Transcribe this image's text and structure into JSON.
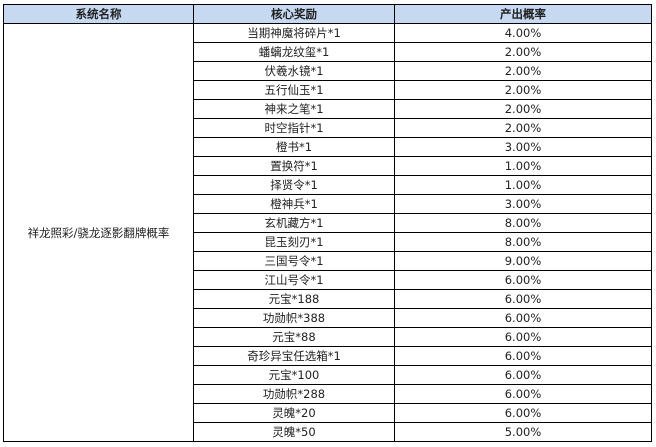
{
  "headers": [
    "系统名称",
    "核心奖励",
    "产出概率"
  ],
  "system_name": "祥龙照彩/骁龙逐影翻牌概率",
  "rows": [
    {
      "reward": "当期神魔将碎片*1",
      "rate": "4.00%"
    },
    {
      "reward": "蟠螭龙纹玺*1",
      "rate": "2.00%"
    },
    {
      "reward": "伏羲水镜*1",
      "rate": "2.00%"
    },
    {
      "reward": "五行仙玉*1",
      "rate": "2.00%"
    },
    {
      "reward": "神来之笔*1",
      "rate": "2.00%"
    },
    {
      "reward": "时空指针*1",
      "rate": "2.00%"
    },
    {
      "reward": "橙书*1",
      "rate": "3.00%"
    },
    {
      "reward": "置换符*1",
      "rate": "1.00%"
    },
    {
      "reward": "择贤令*1",
      "rate": "1.00%"
    },
    {
      "reward": "橙神兵*1",
      "rate": "3.00%"
    },
    {
      "reward": "玄机藏方*1",
      "rate": "8.00%"
    },
    {
      "reward": "昆玉刻刃*1",
      "rate": "8.00%"
    },
    {
      "reward": "三国号令*1",
      "rate": "9.00%"
    },
    {
      "reward": "江山号令*1",
      "rate": "6.00%"
    },
    {
      "reward": "元宝*188",
      "rate": "6.00%"
    },
    {
      "reward": "功勋帜*388",
      "rate": "6.00%"
    },
    {
      "reward": "元宝*88",
      "rate": "6.00%"
    },
    {
      "reward": "奇珍异宝任选箱*1",
      "rate": "6.00%"
    },
    {
      "reward": "元宝*100",
      "rate": "6.00%"
    },
    {
      "reward": "功勋帜*288",
      "rate": "6.00%"
    },
    {
      "reward": "灵魄*20",
      "rate": "6.00%"
    },
    {
      "reward": "灵魄*50",
      "rate": "5.00%"
    }
  ]
}
